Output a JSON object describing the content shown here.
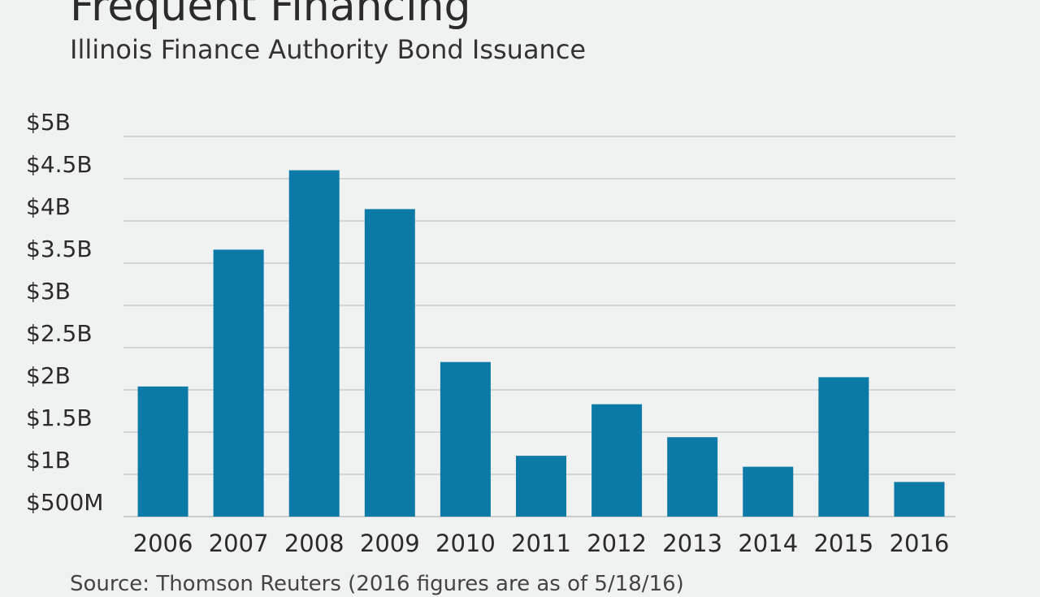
{
  "chart_data": {
    "type": "bar",
    "title": "Frequent Financing",
    "subtitle": "Illinois Finance Authority Bond Issuance",
    "source": "Source: Thomson Reuters (2016 figures are as of 5/18/16)",
    "categories": [
      "2006",
      "2007",
      "2008",
      "2009",
      "2010",
      "2011",
      "2012",
      "2013",
      "2014",
      "2015",
      "2016"
    ],
    "values": [
      2.04,
      3.66,
      4.6,
      4.14,
      2.33,
      1.22,
      1.83,
      1.44,
      1.09,
      2.15,
      0.91
    ],
    "value_unit": "billions USD",
    "y_ticks": [
      {
        "value": 0.5,
        "label": "$500M"
      },
      {
        "value": 1.0,
        "label": "$1B"
      },
      {
        "value": 1.5,
        "label": "$1.5B"
      },
      {
        "value": 2.0,
        "label": "$2B"
      },
      {
        "value": 2.5,
        "label": "$2.5B"
      },
      {
        "value": 3.0,
        "label": "$3B"
      },
      {
        "value": 3.5,
        "label": "$3.5B"
      },
      {
        "value": 4.0,
        "label": "$4B"
      },
      {
        "value": 4.5,
        "label": "$4.5B"
      },
      {
        "value": 5.0,
        "label": "$5B"
      }
    ],
    "ylim": [
      0.5,
      5.0
    ],
    "grid": true,
    "bar_color": "#0b7aa6",
    "grid_color": "#c9cccc",
    "xlabel": "",
    "ylabel": ""
  }
}
